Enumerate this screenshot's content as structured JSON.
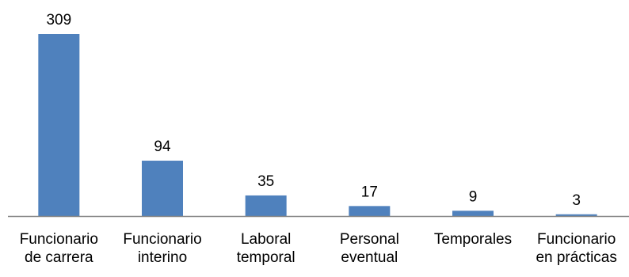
{
  "chart_data": {
    "type": "bar",
    "categories": [
      [
        "Funcionario",
        "de carrera"
      ],
      [
        "Funcionario",
        "interino"
      ],
      [
        "Laboral",
        "temporal"
      ],
      [
        "Personal",
        "eventual"
      ],
      [
        "Temporales"
      ],
      [
        "Funcionario",
        "en prácticas"
      ]
    ],
    "values": [
      309,
      94,
      35,
      17,
      9,
      3
    ],
    "data_labels": [
      "309",
      "94",
      "35",
      "17",
      "9",
      "3"
    ],
    "title": "",
    "xlabel": "",
    "ylabel": "",
    "ylim": [
      0,
      309
    ],
    "grid": false,
    "legend": "none",
    "colors": {
      "bar": "#4f81bd",
      "axis": "#868686"
    }
  }
}
